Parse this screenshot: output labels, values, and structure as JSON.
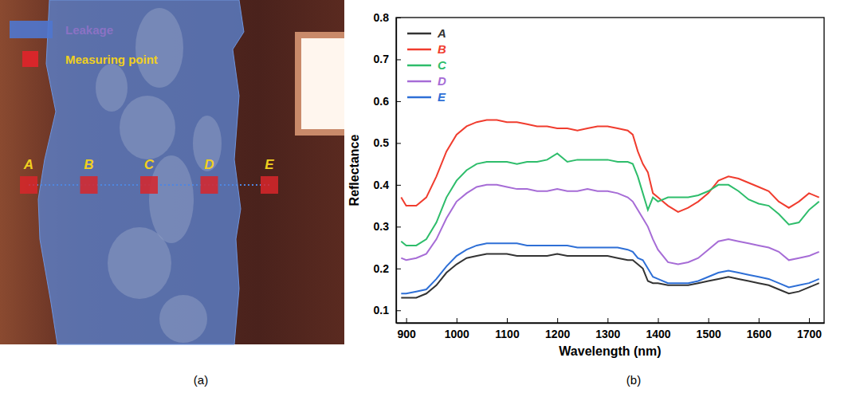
{
  "panel_labels": [
    "(a)",
    "(b)"
  ],
  "photo": {
    "legend_items": [
      "Leakage",
      "Measuring point"
    ],
    "points": [
      "A",
      "B",
      "C",
      "D",
      "E"
    ]
  },
  "chart_data": {
    "type": "line",
    "x_label": "Wavelength (nm)",
    "y_label": "Reflectance",
    "xlim": [
      880,
      1730
    ],
    "ylim": [
      0.07,
      0.8
    ],
    "xticks": [
      900,
      1000,
      1100,
      1200,
      1300,
      1400,
      1500,
      1600,
      1700
    ],
    "yticks": [
      0.1,
      0.2,
      0.3,
      0.4,
      0.5,
      0.6,
      0.7,
      0.8
    ],
    "grid": false,
    "legend": "upper left",
    "x": [
      890,
      900,
      920,
      940,
      960,
      980,
      1000,
      1020,
      1040,
      1060,
      1080,
      1100,
      1120,
      1140,
      1160,
      1180,
      1200,
      1220,
      1240,
      1260,
      1280,
      1300,
      1320,
      1340,
      1350,
      1360,
      1370,
      1380,
      1390,
      1400,
      1420,
      1440,
      1460,
      1480,
      1500,
      1520,
      1540,
      1560,
      1580,
      1600,
      1620,
      1640,
      1660,
      1680,
      1700,
      1720
    ],
    "series": [
      {
        "name": "A",
        "color": "#333333",
        "values": [
          0.13,
          0.13,
          0.13,
          0.14,
          0.16,
          0.19,
          0.21,
          0.225,
          0.23,
          0.235,
          0.235,
          0.235,
          0.23,
          0.23,
          0.23,
          0.23,
          0.235,
          0.23,
          0.23,
          0.23,
          0.23,
          0.23,
          0.225,
          0.22,
          0.22,
          0.21,
          0.2,
          0.17,
          0.165,
          0.165,
          0.16,
          0.16,
          0.16,
          0.165,
          0.17,
          0.175,
          0.18,
          0.175,
          0.17,
          0.165,
          0.16,
          0.15,
          0.14,
          0.145,
          0.155,
          0.165
        ]
      },
      {
        "name": "B",
        "color": "#f03c2e",
        "values": [
          0.37,
          0.35,
          0.35,
          0.37,
          0.42,
          0.48,
          0.52,
          0.54,
          0.55,
          0.555,
          0.555,
          0.55,
          0.55,
          0.545,
          0.54,
          0.54,
          0.535,
          0.535,
          0.53,
          0.535,
          0.54,
          0.54,
          0.535,
          0.53,
          0.52,
          0.48,
          0.45,
          0.43,
          0.38,
          0.37,
          0.35,
          0.335,
          0.345,
          0.36,
          0.38,
          0.41,
          0.42,
          0.415,
          0.405,
          0.395,
          0.385,
          0.36,
          0.345,
          0.36,
          0.38,
          0.37
        ]
      },
      {
        "name": "C",
        "color": "#2ebd6b",
        "values": [
          0.265,
          0.255,
          0.255,
          0.27,
          0.31,
          0.37,
          0.41,
          0.435,
          0.45,
          0.455,
          0.455,
          0.455,
          0.45,
          0.455,
          0.455,
          0.46,
          0.475,
          0.455,
          0.46,
          0.46,
          0.46,
          0.46,
          0.455,
          0.455,
          0.45,
          0.42,
          0.38,
          0.34,
          0.37,
          0.36,
          0.37,
          0.37,
          0.37,
          0.375,
          0.385,
          0.4,
          0.4,
          0.385,
          0.365,
          0.355,
          0.35,
          0.33,
          0.305,
          0.31,
          0.34,
          0.36
        ]
      },
      {
        "name": "D",
        "color": "#a66cd6",
        "values": [
          0.225,
          0.22,
          0.225,
          0.235,
          0.27,
          0.32,
          0.36,
          0.38,
          0.395,
          0.4,
          0.4,
          0.395,
          0.39,
          0.39,
          0.385,
          0.385,
          0.39,
          0.385,
          0.385,
          0.39,
          0.385,
          0.385,
          0.38,
          0.37,
          0.36,
          0.34,
          0.32,
          0.3,
          0.27,
          0.245,
          0.215,
          0.21,
          0.215,
          0.225,
          0.245,
          0.265,
          0.27,
          0.265,
          0.26,
          0.255,
          0.25,
          0.24,
          0.22,
          0.225,
          0.23,
          0.24
        ]
      },
      {
        "name": "E",
        "color": "#2e6fd6",
        "values": [
          0.14,
          0.14,
          0.145,
          0.15,
          0.175,
          0.205,
          0.23,
          0.245,
          0.255,
          0.26,
          0.26,
          0.26,
          0.26,
          0.255,
          0.255,
          0.255,
          0.255,
          0.255,
          0.25,
          0.25,
          0.25,
          0.25,
          0.25,
          0.245,
          0.24,
          0.225,
          0.22,
          0.2,
          0.18,
          0.175,
          0.165,
          0.165,
          0.165,
          0.17,
          0.18,
          0.19,
          0.195,
          0.19,
          0.185,
          0.18,
          0.175,
          0.165,
          0.155,
          0.16,
          0.165,
          0.175
        ]
      }
    ]
  }
}
